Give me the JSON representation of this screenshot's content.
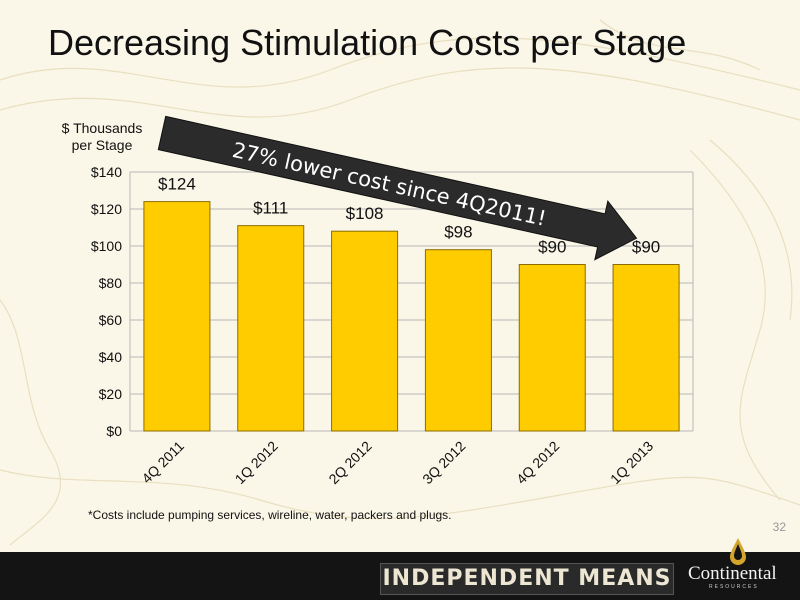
{
  "slide": {
    "title": "Decreasing Stimulation Costs per Stage",
    "y_unit_line1": "$ Thousands",
    "y_unit_line2": "per Stage",
    "footnote": "*Costs include pumping services, wireline, water, packers and plugs.",
    "page_number": "32",
    "tagline": "INDEPENDENT MEANS",
    "logo_name": "Continental",
    "logo_subtext": "RESOURCES"
  },
  "callout": {
    "text": "27% lower cost since 4Q2011!"
  },
  "colors": {
    "bar_fill": "#ffcc00",
    "bar_stroke": "#8a6d00",
    "arrow": "#2b2b2b",
    "grid": "#b8b8b8",
    "footer": "#141414"
  },
  "chart_data": {
    "type": "bar",
    "title": "",
    "categories": [
      "4Q 2011",
      "1Q 2012",
      "2Q 2012",
      "3Q 2012",
      "4Q 2012",
      "1Q 2013"
    ],
    "values": [
      124,
      111,
      108,
      98,
      90,
      90
    ],
    "data_labels": [
      "$124",
      "$111",
      "$108",
      "$98",
      "$90",
      "$90"
    ],
    "xlabel": "",
    "ylabel": "$ Thousands per Stage",
    "ylim": [
      0,
      140
    ],
    "yticks": [
      0,
      20,
      40,
      60,
      80,
      100,
      120,
      140
    ],
    "ytick_labels": [
      "$0",
      "$20",
      "$40",
      "$60",
      "$80",
      "$100",
      "$120",
      "$140"
    ],
    "grid": true,
    "legend": "none"
  }
}
